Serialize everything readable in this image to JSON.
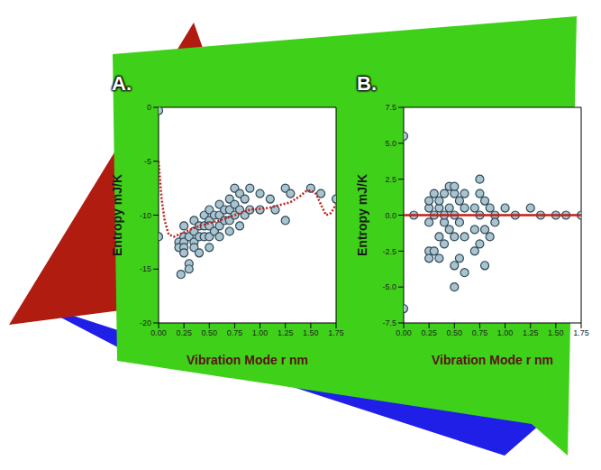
{
  "chart_data": [
    {
      "type": "scatter",
      "title": "A.",
      "x_label": "Vibration Mode r nm",
      "y_label": "Entropy mJ/K",
      "xlim": [
        0,
        1.75
      ],
      "xticks": [
        {
          "value": 0,
          "label": "0.00"
        },
        {
          "value": 0.25,
          "label": "0.25"
        },
        {
          "value": 0.5,
          "label": "0.50"
        },
        {
          "value": 0.75,
          "label": "0.75"
        },
        {
          "value": 1,
          "label": "1.00"
        },
        {
          "value": 1.25,
          "label": "1.25"
        },
        {
          "value": 1.5,
          "label": "1.50"
        },
        {
          "value": 1.75,
          "label": "1.75"
        }
      ],
      "ylim": [
        -20,
        0
      ],
      "yticks": [
        -20,
        -15,
        -10,
        -5,
        0
      ],
      "grid": false,
      "points": {
        "color": "#2f4858",
        "marker": "circle",
        "x": [
          0,
          0,
          0.2,
          0.2,
          0.22,
          0.25,
          0.25,
          0.25,
          0.25,
          0.25,
          0.3,
          0.3,
          0.3,
          0.35,
          0.35,
          0.35,
          0.35,
          0.4,
          0.4,
          0.4,
          0.45,
          0.45,
          0.45,
          0.5,
          0.5,
          0.5,
          0.5,
          0.5,
          0.55,
          0.55,
          0.6,
          0.6,
          0.6,
          0.6,
          0.65,
          0.65,
          0.7,
          0.7,
          0.7,
          0.7,
          0.75,
          0.75,
          0.75,
          0.8,
          0.8,
          0.8,
          0.85,
          0.85,
          0.9,
          0.9,
          1,
          1,
          1.1,
          1.15,
          1.25,
          1.25,
          1.3,
          1.5,
          1.6,
          1.75
        ],
        "y": [
          -0.3,
          -12,
          -12.5,
          -13,
          -15.5,
          -11,
          -12,
          -12.5,
          -13,
          -13.5,
          -12,
          -14.5,
          -15,
          -10.5,
          -11.5,
          -12.5,
          -13,
          -11,
          -12,
          -13.5,
          -10,
          -11,
          -12,
          -9.5,
          -10.5,
          -11,
          -12,
          -13,
          -10,
          -11.5,
          -9,
          -10,
          -11,
          -12,
          -9.5,
          -10.5,
          -8.5,
          -9.5,
          -10.5,
          -11.5,
          -7.5,
          -9,
          -10,
          -8,
          -9.5,
          -11,
          -8.5,
          -10,
          -7.5,
          -9.5,
          -8,
          -9.5,
          -8.5,
          -9.5,
          -7.5,
          -10.5,
          -8,
          -7.5,
          -8,
          -8.5
        ]
      },
      "curve": {
        "color": "#c0201a",
        "line_style": "dotted",
        "x": [
          0,
          0.03,
          0.06,
          0.1,
          0.15,
          0.25,
          0.4,
          0.6,
          0.75,
          0.9,
          1.1,
          1.3,
          1.4,
          1.45,
          1.5,
          1.55,
          1.6,
          1.65,
          1.7,
          1.75
        ],
        "y": [
          -5,
          -8.5,
          -10.5,
          -11.8,
          -12,
          -11.6,
          -11,
          -10.5,
          -10,
          -9.5,
          -9.3,
          -8.8,
          -8.2,
          -7.8,
          -7.7,
          -8,
          -9,
          -10,
          -9.8,
          -9
        ]
      }
    },
    {
      "type": "scatter",
      "title": "B.",
      "x_label": "Vibration Mode r nm",
      "y_label": "Entropy mJ/K",
      "xlim": [
        0,
        1.75
      ],
      "xticks": [
        {
          "value": 0,
          "label": "0.00"
        },
        {
          "value": 0.25,
          "label": "0.25"
        },
        {
          "value": 0.5,
          "label": "0.50"
        },
        {
          "value": 0.75,
          "label": "0.75"
        },
        {
          "value": 1,
          "label": "1.00"
        },
        {
          "value": 1.25,
          "label": "1.25"
        },
        {
          "value": 1.5,
          "label": "1.50"
        },
        {
          "value": 1.75,
          "label": "1.75"
        }
      ],
      "ylim": [
        -7.5,
        7.5
      ],
      "yticks": [
        -7.5,
        {
          "value": -5,
          "label": "-5.0"
        },
        -2.5,
        {
          "value": 0,
          "label": "0.0"
        },
        2.5,
        {
          "value": 5,
          "label": "5.0"
        },
        7.5
      ],
      "grid": false,
      "points": {
        "color": "#2f4858",
        "marker": "circle",
        "x": [
          0,
          0,
          0.1,
          0.25,
          0.25,
          0.25,
          0.25,
          0.25,
          0.3,
          0.3,
          0.3,
          0.35,
          0.35,
          0.35,
          0.35,
          0.4,
          0.4,
          0.4,
          0.4,
          0.45,
          0.45,
          0.45,
          0.5,
          0.5,
          0.5,
          0.5,
          0.5,
          0.5,
          0.55,
          0.55,
          0.55,
          0.6,
          0.6,
          0.6,
          0.6,
          0.7,
          0.7,
          0.7,
          0.75,
          0.75,
          0.75,
          0.75,
          0.8,
          0.8,
          0.8,
          0.85,
          0.85,
          0.9,
          0.9,
          1,
          1.1,
          1.25,
          1.35,
          1.5,
          1.6,
          1.75
        ],
        "y": [
          5.5,
          -6.5,
          0,
          -2.5,
          -3,
          -0.5,
          0.5,
          1,
          -2.5,
          0,
          1.5,
          -3,
          -1.5,
          0.5,
          1,
          -2,
          -0.5,
          0,
          1.5,
          -1,
          0.5,
          2,
          -5,
          -3.5,
          -1.5,
          0,
          1.5,
          2,
          -3,
          -0.5,
          1,
          -4,
          -1.5,
          0.5,
          1.5,
          -2.5,
          -1,
          0.5,
          -2,
          0,
          1.5,
          2.5,
          -3.5,
          -1,
          1,
          -1.5,
          0.5,
          0,
          -0.5,
          0.5,
          0,
          0.5,
          0,
          0,
          0,
          0
        ]
      },
      "curve": {
        "color": "#c0201a",
        "line_style": "solid",
        "x": [
          0,
          1.75
        ],
        "y": [
          0,
          0
        ]
      }
    }
  ]
}
